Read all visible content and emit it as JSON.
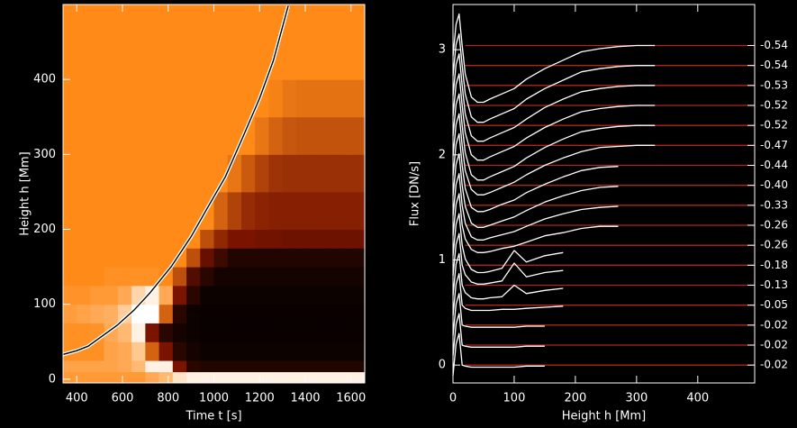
{
  "chart_data": [
    {
      "type": "heatmap",
      "xlabel": "Time t [s]",
      "ylabel": "Height  h [Mm]",
      "xlim": [
        340,
        1660
      ],
      "ylim": [
        -5,
        500
      ],
      "xticks": [
        400,
        600,
        800,
        1000,
        1200,
        1400,
        1600
      ],
      "yticks": [
        0,
        100,
        200,
        300,
        400
      ],
      "colors": [
        "#000000",
        "#7a1400",
        "#ff8a18",
        "#ffc890",
        "#ffffff"
      ],
      "color_stops": [
        0,
        0.3,
        0.6,
        0.8,
        1
      ],
      "curve_color": "#ffffff",
      "x_edges": [
        340,
        400,
        460,
        520,
        580,
        640,
        700,
        760,
        820,
        880,
        940,
        1000,
        1060,
        1120,
        1180,
        1240,
        1300,
        1360,
        1420,
        1480,
        1540,
        1600,
        1660
      ],
      "y_edges": [
        -5,
        10,
        25,
        50,
        75,
        100,
        125,
        150,
        175,
        200,
        250,
        300,
        350,
        400,
        500
      ],
      "z": [
        [
          0.65,
          0.65,
          0.65,
          0.65,
          0.65,
          0.65,
          0.7,
          0.75,
          0.9,
          0.95,
          0.95,
          0.95,
          0.95,
          0.95,
          0.95,
          0.95,
          0.95,
          0.95,
          0.95,
          0.95,
          0.95,
          0.95
        ],
        [
          0.68,
          0.68,
          0.68,
          0.68,
          0.7,
          0.75,
          0.95,
          0.95,
          0.3,
          0.1,
          0.08,
          0.08,
          0.08,
          0.08,
          0.08,
          0.08,
          0.08,
          0.08,
          0.08,
          0.08,
          0.08,
          0.08
        ],
        [
          0.62,
          0.62,
          0.62,
          0.68,
          0.7,
          0.8,
          0.5,
          0.3,
          0.1,
          0.05,
          0.03,
          0.03,
          0.03,
          0.03,
          0.03,
          0.03,
          0.03,
          0.03,
          0.03,
          0.03,
          0.03,
          0.03
        ],
        [
          0.62,
          0.62,
          0.63,
          0.7,
          0.75,
          0.95,
          0.3,
          0.1,
          0.05,
          0.03,
          0.02,
          0.02,
          0.02,
          0.02,
          0.02,
          0.02,
          0.02,
          0.02,
          0.02,
          0.02,
          0.02,
          0.02
        ],
        [
          0.66,
          0.68,
          0.7,
          0.72,
          0.82,
          1.0,
          1.0,
          0.5,
          0.1,
          0.03,
          0.02,
          0.02,
          0.02,
          0.02,
          0.02,
          0.02,
          0.02,
          0.02,
          0.02,
          0.02,
          0.02,
          0.02
        ],
        [
          0.63,
          0.63,
          0.65,
          0.65,
          0.7,
          0.85,
          0.95,
          0.7,
          0.3,
          0.1,
          0.03,
          0.03,
          0.03,
          0.03,
          0.03,
          0.03,
          0.03,
          0.03,
          0.03,
          0.03,
          0.03,
          0.03
        ],
        [
          0.6,
          0.6,
          0.6,
          0.62,
          0.62,
          0.62,
          0.62,
          0.6,
          0.45,
          0.2,
          0.1,
          0.05,
          0.05,
          0.05,
          0.05,
          0.05,
          0.05,
          0.05,
          0.05,
          0.05,
          0.05,
          0.05
        ],
        [
          0.6,
          0.6,
          0.6,
          0.6,
          0.6,
          0.6,
          0.6,
          0.6,
          0.6,
          0.45,
          0.25,
          0.15,
          0.08,
          0.08,
          0.08,
          0.08,
          0.08,
          0.08,
          0.08,
          0.08,
          0.08,
          0.08
        ],
        [
          0.6,
          0.6,
          0.6,
          0.6,
          0.6,
          0.6,
          0.6,
          0.6,
          0.6,
          0.6,
          0.45,
          0.35,
          0.3,
          0.3,
          0.28,
          0.28,
          0.27,
          0.27,
          0.27,
          0.27,
          0.27,
          0.27
        ],
        [
          0.6,
          0.6,
          0.6,
          0.6,
          0.6,
          0.6,
          0.6,
          0.6,
          0.6,
          0.6,
          0.6,
          0.5,
          0.42,
          0.36,
          0.34,
          0.33,
          0.33,
          0.33,
          0.33,
          0.33,
          0.33,
          0.33
        ],
        [
          0.6,
          0.6,
          0.6,
          0.6,
          0.6,
          0.6,
          0.6,
          0.6,
          0.6,
          0.6,
          0.6,
          0.6,
          0.55,
          0.48,
          0.42,
          0.38,
          0.37,
          0.37,
          0.37,
          0.37,
          0.37,
          0.37
        ],
        [
          0.6,
          0.6,
          0.6,
          0.6,
          0.6,
          0.6,
          0.6,
          0.6,
          0.6,
          0.6,
          0.6,
          0.6,
          0.6,
          0.6,
          0.55,
          0.5,
          0.47,
          0.46,
          0.46,
          0.46,
          0.46,
          0.46
        ],
        [
          0.6,
          0.6,
          0.6,
          0.6,
          0.6,
          0.6,
          0.6,
          0.6,
          0.6,
          0.6,
          0.6,
          0.6,
          0.6,
          0.6,
          0.6,
          0.58,
          0.55,
          0.54,
          0.54,
          0.54,
          0.54,
          0.54
        ],
        [
          0.6,
          0.6,
          0.6,
          0.6,
          0.6,
          0.6,
          0.6,
          0.6,
          0.6,
          0.6,
          0.6,
          0.6,
          0.6,
          0.6,
          0.6,
          0.6,
          0.6,
          0.6,
          0.6,
          0.6,
          0.6,
          0.6
        ]
      ],
      "curve": {
        "x": [
          340,
          400,
          450,
          500,
          577,
          650,
          720,
          813,
          900,
          971,
          1050,
          1128,
          1200,
          1260,
          1325
        ],
        "y": [
          33,
          38,
          44,
          55,
          72,
          92,
          115,
          150,
          190,
          228,
          270,
          324,
          375,
          425,
          498
        ]
      }
    },
    {
      "type": "line",
      "xlabel": "Height  h [Mm]",
      "ylabel": "Flux [DN/s]",
      "xlim": [
        0,
        493
      ],
      "ylim": [
        -0.17,
        3.43
      ],
      "xticks": [
        0,
        100,
        200,
        300,
        400
      ],
      "yticks": [
        0,
        1,
        2,
        3
      ],
      "line_color": "#ffffff",
      "baseline_color": "#b0261c",
      "x": [
        0,
        5,
        10,
        15,
        20,
        30,
        40,
        50,
        60,
        80,
        100,
        120,
        150,
        180,
        210,
        240,
        270,
        300,
        330
      ],
      "series": [
        {
          "label": "-0.54",
          "offset": 3.04,
          "values": [
            -0.1,
            0.2,
            0.3,
            0,
            -0.27,
            -0.49,
            -0.54,
            -0.54,
            -0.51,
            -0.46,
            -0.41,
            -0.32,
            -0.22,
            -0.14,
            -0.06,
            -0.03,
            -0.01,
            0,
            0
          ]
        },
        {
          "label": "-0.54",
          "offset": 2.85,
          "values": [
            -0.1,
            0.2,
            0.3,
            0,
            -0.27,
            -0.49,
            -0.54,
            -0.54,
            -0.51,
            -0.46,
            -0.41,
            -0.32,
            -0.22,
            -0.14,
            -0.06,
            -0.03,
            -0.01,
            0,
            0
          ]
        },
        {
          "label": "-0.53",
          "offset": 2.66,
          "values": [
            -0.1,
            0.2,
            0.3,
            0,
            -0.27,
            -0.48,
            -0.53,
            -0.53,
            -0.5,
            -0.45,
            -0.4,
            -0.32,
            -0.21,
            -0.13,
            -0.06,
            -0.03,
            -0.01,
            0,
            0
          ]
        },
        {
          "label": "-0.52",
          "offset": 2.47,
          "values": [
            -0.1,
            0.2,
            0.3,
            0,
            -0.26,
            -0.47,
            -0.52,
            -0.52,
            -0.49,
            -0.44,
            -0.39,
            -0.31,
            -0.21,
            -0.13,
            -0.06,
            -0.03,
            -0.01,
            0,
            0
          ]
        },
        {
          "label": "-0.52",
          "offset": 2.28,
          "values": [
            -0.1,
            0.2,
            0.3,
            0,
            -0.26,
            -0.47,
            -0.52,
            -0.52,
            -0.49,
            -0.44,
            -0.39,
            -0.31,
            -0.21,
            -0.13,
            -0.06,
            -0.03,
            -0.01,
            0,
            0
          ]
        },
        {
          "label": "-0.47",
          "offset": 2.09,
          "values": [
            -0.1,
            0.2,
            0.3,
            0,
            -0.24,
            -0.42,
            -0.47,
            -0.47,
            -0.45,
            -0.4,
            -0.35,
            -0.28,
            -0.19,
            -0.12,
            -0.06,
            -0.02,
            -0.01,
            0,
            0
          ]
        },
        {
          "label": "-0.44",
          "offset": 1.9,
          "values": [
            -0.1,
            0.2,
            0.3,
            0,
            -0.22,
            -0.4,
            -0.44,
            -0.44,
            -0.42,
            -0.37,
            -0.33,
            -0.26,
            -0.18,
            -0.11,
            -0.05,
            -0.02,
            -0.01,
            null,
            null
          ]
        },
        {
          "label": "-0.40",
          "offset": 1.71,
          "values": [
            -0.1,
            0.2,
            0.3,
            0,
            -0.2,
            -0.36,
            -0.4,
            -0.4,
            -0.38,
            -0.34,
            -0.3,
            -0.24,
            -0.16,
            -0.1,
            -0.05,
            -0.02,
            -0.01,
            null,
            null
          ]
        },
        {
          "label": "-0.33",
          "offset": 1.52,
          "values": [
            -0.1,
            0.2,
            0.3,
            0,
            -0.17,
            -0.3,
            -0.33,
            -0.33,
            -0.31,
            -0.28,
            -0.25,
            -0.2,
            -0.13,
            -0.08,
            -0.04,
            -0.02,
            -0.01,
            null,
            null
          ]
        },
        {
          "label": "-0.26",
          "offset": 1.33,
          "values": [
            -0.1,
            0.2,
            0.3,
            0,
            -0.13,
            -0.23,
            -0.26,
            -0.26,
            -0.25,
            -0.22,
            -0.2,
            -0.16,
            -0.1,
            -0.07,
            -0.03,
            -0.01,
            -0.01,
            null,
            null
          ]
        },
        {
          "label": "-0.26",
          "offset": 1.14,
          "values": [
            -0.1,
            0.2,
            0.3,
            0,
            -0.13,
            -0.23,
            -0.26,
            -0.26,
            -0.25,
            -0.22,
            -0.05,
            -0.16,
            -0.1,
            -0.07,
            null,
            null,
            null,
            null,
            null
          ]
        },
        {
          "label": "-0.18",
          "offset": 0.95,
          "values": [
            -0.1,
            0.2,
            0.3,
            0,
            -0.09,
            -0.16,
            -0.18,
            -0.18,
            -0.17,
            -0.15,
            0.02,
            -0.11,
            -0.07,
            -0.05,
            null,
            null,
            null,
            null,
            null
          ]
        },
        {
          "label": "-0.13",
          "offset": 0.76,
          "values": [
            -0.1,
            0.2,
            0.3,
            0,
            -0.07,
            -0.12,
            -0.13,
            -0.13,
            -0.12,
            -0.11,
            0,
            -0.08,
            -0.05,
            -0.03,
            null,
            null,
            null,
            null,
            null
          ]
        },
        {
          "label": "-0.05",
          "offset": 0.57,
          "values": [
            -0.1,
            0.2,
            0.3,
            0,
            -0.03,
            -0.05,
            -0.05,
            -0.05,
            -0.05,
            -0.04,
            -0.04,
            -0.03,
            -0.02,
            -0.01,
            null,
            null,
            null,
            null,
            null
          ]
        },
        {
          "label": "-0.02",
          "offset": 0.38,
          "values": [
            -0.1,
            0.2,
            0.3,
            0,
            -0.01,
            -0.02,
            -0.02,
            -0.02,
            -0.02,
            -0.02,
            -0.02,
            -0.01,
            -0.01,
            null,
            null,
            null,
            null,
            null,
            null
          ]
        },
        {
          "label": "-0.02",
          "offset": 0.19,
          "values": [
            -0.1,
            0.2,
            0.3,
            0,
            -0.01,
            -0.02,
            -0.02,
            -0.02,
            -0.02,
            -0.02,
            -0.02,
            -0.01,
            -0.01,
            null,
            null,
            null,
            null,
            null,
            null
          ]
        },
        {
          "label": "-0.02",
          "offset": 0,
          "values": [
            -0.1,
            0.2,
            0.3,
            0,
            -0.01,
            -0.02,
            -0.02,
            -0.02,
            -0.02,
            -0.02,
            -0.02,
            -0.01,
            -0.01,
            null,
            null,
            null,
            null,
            null,
            null
          ]
        }
      ]
    }
  ]
}
